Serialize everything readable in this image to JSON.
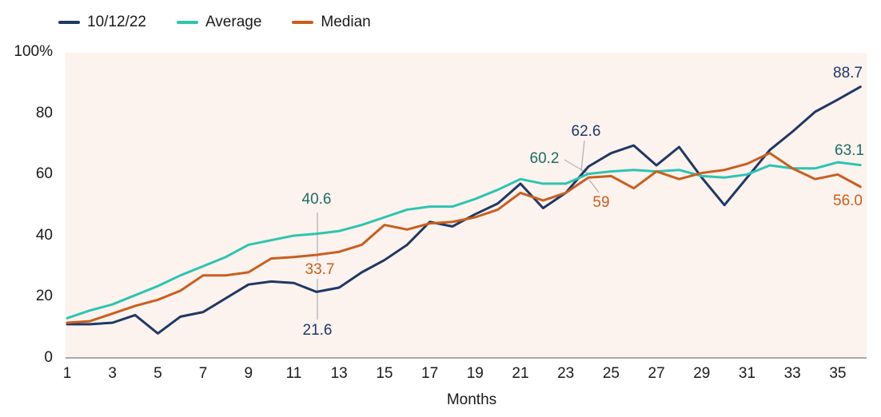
{
  "legend": [
    {
      "label": "10/12/22",
      "color": "#1f3864"
    },
    {
      "label": "Average",
      "color": "#2cc5b0"
    },
    {
      "label": "Median",
      "color": "#c75f1e"
    }
  ],
  "colors": {
    "plot_background": "#fcf2ee",
    "axis_line": "#8f8f8f",
    "callout_line": "#b5b5b5",
    "tick_text": "#1a1a1a"
  },
  "chart_data": {
    "type": "line",
    "title": "",
    "xlabel": "Months",
    "ylabel": "",
    "ylim": [
      0,
      100
    ],
    "x_range": [
      1,
      36
    ],
    "grid": false,
    "legend_position": "top-left",
    "y_ticks": [
      {
        "label": "100%",
        "value": 100
      },
      {
        "label": "80",
        "value": 80
      },
      {
        "label": "60",
        "value": 60
      },
      {
        "label": "40",
        "value": 40
      },
      {
        "label": "20",
        "value": 20
      },
      {
        "label": "0",
        "value": 0
      }
    ],
    "x_ticks": [
      1,
      3,
      5,
      7,
      9,
      11,
      13,
      15,
      17,
      19,
      21,
      23,
      25,
      27,
      29,
      31,
      33,
      35
    ],
    "series": [
      {
        "name": "10/12/22",
        "color": "#1f3864",
        "label_color": "#1f3864",
        "values": [
          11,
          11,
          11.5,
          14,
          8,
          13.5,
          15,
          19.5,
          24,
          25,
          24.5,
          21.6,
          23,
          28,
          32,
          37,
          44.5,
          43,
          47,
          50.5,
          57,
          49,
          54,
          62.6,
          67,
          69.5,
          63,
          69,
          59,
          50,
          59,
          68,
          74,
          80.5,
          84.5,
          88.7
        ]
      },
      {
        "name": "Average",
        "color": "#2cc5b0",
        "label_color": "#1d6e62",
        "values": [
          13,
          15.5,
          17.5,
          20.5,
          23.5,
          27,
          30,
          33,
          37,
          38.5,
          40,
          40.6,
          41.5,
          43.5,
          46,
          48.5,
          49.5,
          49.5,
          52,
          55,
          58.5,
          57,
          57,
          60.2,
          61,
          61.5,
          61,
          61.5,
          59.5,
          59,
          60,
          63,
          62,
          62,
          64,
          63.1
        ]
      },
      {
        "name": "Median",
        "color": "#c75f1e",
        "label_color": "#c75f1e",
        "values": [
          11.5,
          12,
          14.5,
          17,
          19,
          22,
          27,
          27,
          28,
          32.5,
          33,
          33.7,
          34.7,
          37,
          43.5,
          42,
          44,
          44.5,
          46,
          48.5,
          54,
          51.5,
          54,
          59,
          59.5,
          55.5,
          61,
          58.5,
          60.5,
          61.5,
          63.5,
          67,
          62,
          58.5,
          60,
          56.0
        ]
      }
    ],
    "annotations": [
      {
        "series": "Average",
        "month": 12,
        "text": "40.6"
      },
      {
        "series": "Median",
        "month": 12,
        "text": "33.7"
      },
      {
        "series": "10/12/22",
        "month": 12,
        "text": "21.6"
      },
      {
        "series": "10/12/22",
        "month": 24,
        "text": "62.6"
      },
      {
        "series": "Average",
        "month": 24,
        "text": "60.2"
      },
      {
        "series": "Median",
        "month": 24,
        "text": "59"
      },
      {
        "series": "10/12/22",
        "month": 36,
        "text": "88.7"
      },
      {
        "series": "Average",
        "month": 36,
        "text": "63.1"
      },
      {
        "series": "Median",
        "month": 36,
        "text": "56.0"
      }
    ]
  }
}
